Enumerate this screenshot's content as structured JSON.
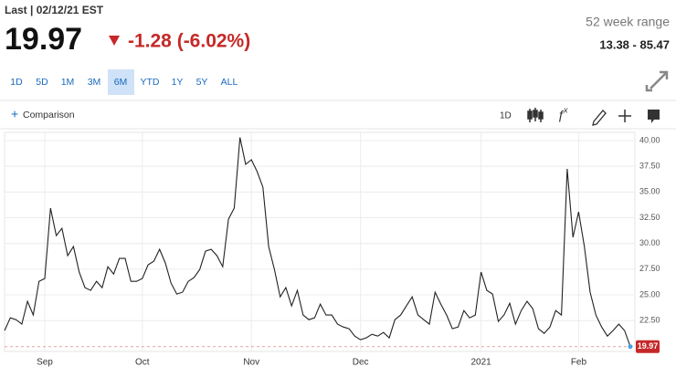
{
  "header": {
    "status": "Last | 02/12/21 EST",
    "price": "19.97",
    "change": "-1.28 (-6.02%)",
    "range_label": "52 week range",
    "range": "13.38 - 85.47"
  },
  "toolbar": {
    "ranges": [
      "1D",
      "5D",
      "1M",
      "3M",
      "6M",
      "YTD",
      "1Y",
      "5Y",
      "ALL"
    ],
    "selected_range": "6M",
    "comparison": "Comparison",
    "interval": "1D"
  },
  "chart_data": {
    "type": "line",
    "color": "#222222",
    "categories": [
      null,
      null,
      null,
      null,
      null,
      null,
      null,
      "Sep",
      null,
      null,
      null,
      null,
      null,
      null,
      null,
      null,
      null,
      null,
      null,
      null,
      null,
      null,
      null,
      null,
      "Oct",
      null,
      null,
      null,
      null,
      null,
      null,
      null,
      null,
      null,
      null,
      null,
      null,
      null,
      null,
      null,
      null,
      null,
      null,
      "Nov",
      null,
      null,
      null,
      null,
      null,
      null,
      null,
      null,
      null,
      null,
      null,
      null,
      null,
      null,
      null,
      null,
      null,
      null,
      "Dec",
      null,
      null,
      null,
      null,
      null,
      null,
      null,
      null,
      null,
      null,
      null,
      null,
      null,
      null,
      null,
      null,
      null,
      null,
      null,
      null,
      "2021",
      null,
      null,
      null,
      null,
      null,
      null,
      null,
      null,
      null,
      null,
      null,
      null,
      null,
      null,
      null,
      null,
      "Feb",
      null,
      null,
      null,
      null,
      null,
      null,
      null,
      null,
      null
    ],
    "values": [
      21.53,
      22.77,
      22.59,
      22.15,
      24.37,
      23.04,
      26.32,
      26.59,
      33.43,
      30.76,
      31.47,
      28.81,
      29.7,
      27.21,
      25.7,
      25.44,
      26.32,
      25.7,
      27.74,
      27.03,
      28.54,
      28.54,
      26.32,
      26.32,
      26.59,
      27.92,
      28.28,
      29.43,
      28.1,
      26.15,
      25.08,
      25.26,
      26.32,
      26.68,
      27.48,
      29.25,
      29.43,
      28.81,
      27.74,
      32.36,
      33.43,
      40.3,
      37.69,
      38.14,
      36.98,
      35.47,
      29.7,
      27.48,
      24.81,
      25.7,
      23.93,
      25.44,
      23.04,
      22.59,
      22.77,
      24.1,
      23.04,
      23.04,
      22.15,
      21.88,
      21.71,
      20.99,
      20.64,
      20.82,
      21.17,
      20.99,
      21.35,
      20.82,
      22.59,
      23.04,
      23.93,
      24.81,
      23.04,
      22.59,
      22.15,
      25.26,
      24.1,
      23.04,
      21.71,
      21.88,
      23.48,
      22.77,
      23.04,
      27.21,
      25.44,
      25.08,
      22.42,
      23.04,
      24.19,
      22.15,
      23.48,
      24.37,
      23.66,
      21.71,
      21.26,
      21.88,
      23.48,
      23.04,
      37.25,
      30.59,
      33.07,
      29.7,
      25.26,
      23.04,
      21.88,
      20.99,
      21.53,
      22.15,
      21.53,
      19.97
    ],
    "ylim": [
      19.5,
      40.8
    ],
    "yticks": [
      {
        "value": 22.5,
        "label": "22.50"
      },
      {
        "value": 25,
        "label": "25.00"
      },
      {
        "value": 27.5,
        "label": "27.50"
      },
      {
        "value": 30,
        "label": "30.00"
      },
      {
        "value": 32.5,
        "label": "32.50"
      },
      {
        "value": 35,
        "label": "35.00"
      },
      {
        "value": 37.5,
        "label": "37.50"
      },
      {
        "value": 40,
        "label": "40.00"
      }
    ],
    "grid": true
  }
}
